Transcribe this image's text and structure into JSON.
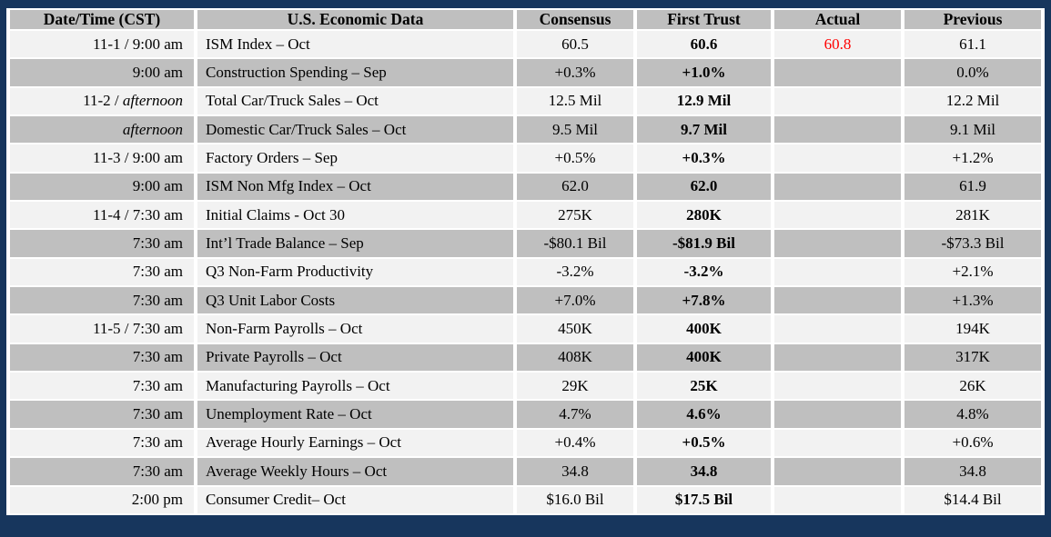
{
  "colors": {
    "frame_border": "#17365d",
    "header_bg": "#bfbfbf",
    "row_light": "#f2f2f2",
    "row_dark": "#bfbfbf",
    "actual_highlight": "#ff0000"
  },
  "table": {
    "columns": [
      "Date/Time (CST)",
      "U.S. Economic Data",
      "Consensus",
      "First Trust",
      "Actual",
      "Previous"
    ],
    "rows": [
      {
        "date": "11-1 / 9:00 am",
        "date_italic": "",
        "indicator": "ISM Index – Oct",
        "consensus": "60.5",
        "first_trust": "60.6",
        "actual": "60.8",
        "actual_color": "#ff0000",
        "previous": "61.1"
      },
      {
        "date": "9:00 am",
        "date_italic": "",
        "indicator": "Construction Spending – Sep",
        "consensus": "+0.3%",
        "first_trust": "+1.0%",
        "actual": "",
        "previous": "0.0%"
      },
      {
        "date": "11-2 / ",
        "date_italic": "afternoon",
        "indicator": "Total Car/Truck Sales – Oct",
        "consensus": "12.5 Mil",
        "first_trust": "12.9 Mil",
        "actual": "",
        "previous": "12.2 Mil"
      },
      {
        "date": "",
        "date_italic": "afternoon",
        "indicator": "Domestic Car/Truck Sales – Oct",
        "consensus": "9.5 Mil",
        "first_trust": "9.7 Mil",
        "actual": "",
        "previous": "9.1 Mil"
      },
      {
        "date": "11-3 / 9:00 am",
        "date_italic": "",
        "indicator": "Factory Orders – Sep",
        "consensus": "+0.5%",
        "first_trust": "+0.3%",
        "actual": "",
        "previous": "+1.2%"
      },
      {
        "date": "9:00 am",
        "date_italic": "",
        "indicator": "ISM Non Mfg Index – Oct",
        "consensus": "62.0",
        "first_trust": "62.0",
        "actual": "",
        "previous": "61.9"
      },
      {
        "date": "11-4 / 7:30 am",
        "date_italic": "",
        "indicator": "Initial Claims - Oct 30",
        "consensus": "275K",
        "first_trust": "280K",
        "actual": "",
        "previous": "281K"
      },
      {
        "date": "7:30 am",
        "date_italic": "",
        "indicator": "Int’l Trade Balance – Sep",
        "consensus": "-$80.1 Bil",
        "first_trust": "-$81.9 Bil",
        "actual": "",
        "previous": "-$73.3 Bil"
      },
      {
        "date": "7:30 am",
        "date_italic": "",
        "indicator": "Q3 Non-Farm Productivity",
        "consensus": "-3.2%",
        "first_trust": "-3.2%",
        "actual": "",
        "previous": "+2.1%"
      },
      {
        "date": "7:30 am",
        "date_italic": "",
        "indicator": "Q3 Unit Labor Costs",
        "consensus": "+7.0%",
        "first_trust": "+7.8%",
        "actual": "",
        "previous": "+1.3%"
      },
      {
        "date": "11-5 / 7:30 am",
        "date_italic": "",
        "indicator": "Non-Farm Payrolls – Oct",
        "consensus": "450K",
        "first_trust": "400K",
        "actual": "",
        "previous": "194K"
      },
      {
        "date": "7:30 am",
        "date_italic": "",
        "indicator": "Private Payrolls – Oct",
        "consensus": "408K",
        "first_trust": "400K",
        "actual": "",
        "previous": "317K"
      },
      {
        "date": "7:30 am",
        "date_italic": "",
        "indicator": "Manufacturing Payrolls – Oct",
        "consensus": "29K",
        "first_trust": "25K",
        "actual": "",
        "previous": "26K"
      },
      {
        "date": "7:30 am",
        "date_italic": "",
        "indicator": "Unemployment Rate – Oct",
        "consensus": "4.7%",
        "first_trust": "4.6%",
        "actual": "",
        "previous": "4.8%"
      },
      {
        "date": "7:30 am",
        "date_italic": "",
        "indicator": "Average Hourly Earnings – Oct",
        "consensus": "+0.4%",
        "first_trust": "+0.5%",
        "actual": "",
        "previous": "+0.6%"
      },
      {
        "date": "7:30 am",
        "date_italic": "",
        "indicator": "Average Weekly Hours – Oct",
        "consensus": "34.8",
        "first_trust": "34.8",
        "actual": "",
        "previous": "34.8"
      },
      {
        "date": "2:00 pm",
        "date_italic": "",
        "indicator": "Consumer Credit– Oct",
        "consensus": "$16.0 Bil",
        "first_trust": "$17.5 Bil",
        "actual": "",
        "previous": "$14.4 Bil"
      }
    ]
  }
}
